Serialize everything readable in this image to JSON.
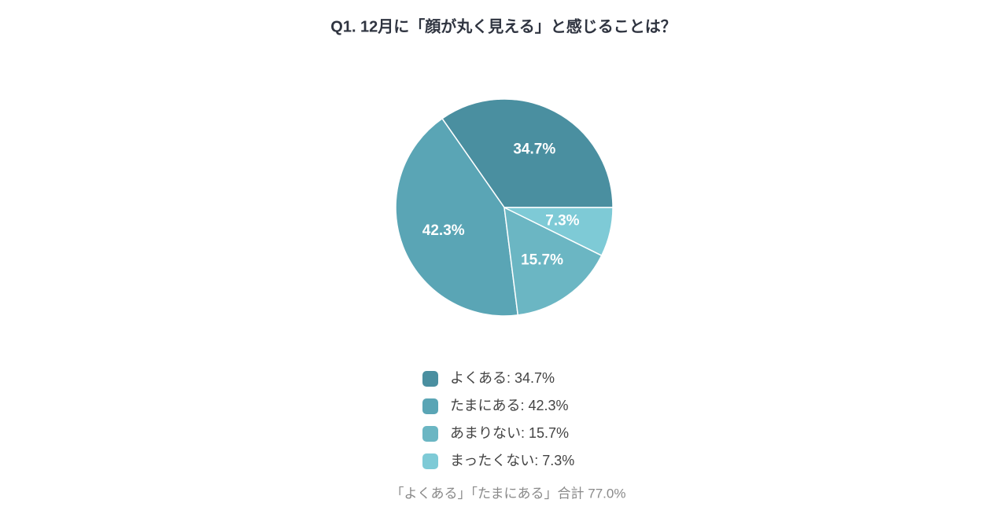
{
  "chart_data": {
    "type": "pie",
    "title": "Q1. 12月に「顔が丸く見える」と感じることは？",
    "values": [
      34.7,
      42.3,
      15.7,
      7.3
    ],
    "value_labels": [
      "34.7%",
      "42.3%",
      "15.7%",
      "7.3%"
    ],
    "colors": [
      "#4a8fa0",
      "#5aa5b5",
      "#6bb6c3",
      "#7ecad6"
    ],
    "legend": [
      "よくある: 34.7%",
      "たまにある: 42.3%",
      "あまりない: 15.7%",
      "まったくない: 7.3%"
    ],
    "note": "「よくある」「たまにある」合計 77.0%"
  }
}
